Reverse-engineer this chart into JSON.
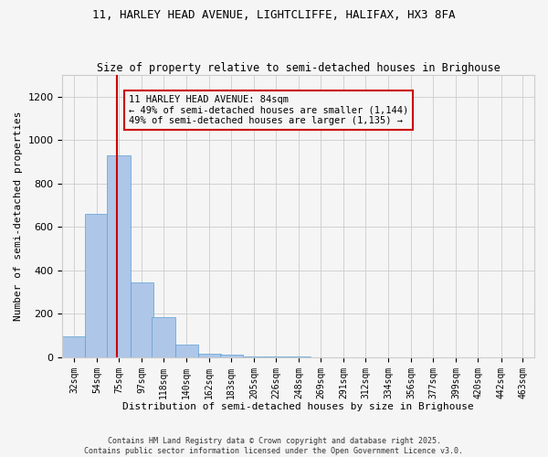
{
  "title": "11, HARLEY HEAD AVENUE, LIGHTCLIFFE, HALIFAX, HX3 8FA",
  "subtitle": "Size of property relative to semi-detached houses in Brighouse",
  "xlabel": "Distribution of semi-detached houses by size in Brighouse",
  "ylabel": "Number of semi-detached properties",
  "bin_edges": [
    32,
    54,
    75,
    97,
    118,
    140,
    162,
    183,
    205,
    226,
    248,
    269,
    291,
    312,
    334,
    356,
    377,
    399,
    420,
    442,
    463
  ],
  "bar_heights": [
    97,
    660,
    930,
    345,
    185,
    60,
    15,
    10,
    5,
    3,
    2,
    1,
    1,
    0,
    0,
    0,
    0,
    0,
    0,
    0
  ],
  "bar_color": "#aec6e8",
  "bar_edgecolor": "#5a9fd4",
  "vline_x": 84,
  "vline_color": "#cc0000",
  "annotation_box_text": "11 HARLEY HEAD AVENUE: 84sqm\n← 49% of semi-detached houses are smaller (1,144)\n49% of semi-detached houses are larger (1,135) →",
  "ylim": [
    0,
    1300
  ],
  "yticks": [
    0,
    200,
    400,
    600,
    800,
    1000,
    1200
  ],
  "footer_text": "Contains HM Land Registry data © Crown copyright and database right 2025.\nContains public sector information licensed under the Open Government Licence v3.0.",
  "bg_color": "#f5f5f5",
  "grid_color": "#cccccc",
  "title_fontsize": 9,
  "subtitle_fontsize": 8.5,
  "tick_label_fontsize": 7,
  "ylabel_fontsize": 8,
  "xlabel_fontsize": 8,
  "annotation_fontsize": 7.5,
  "footer_fontsize": 6
}
